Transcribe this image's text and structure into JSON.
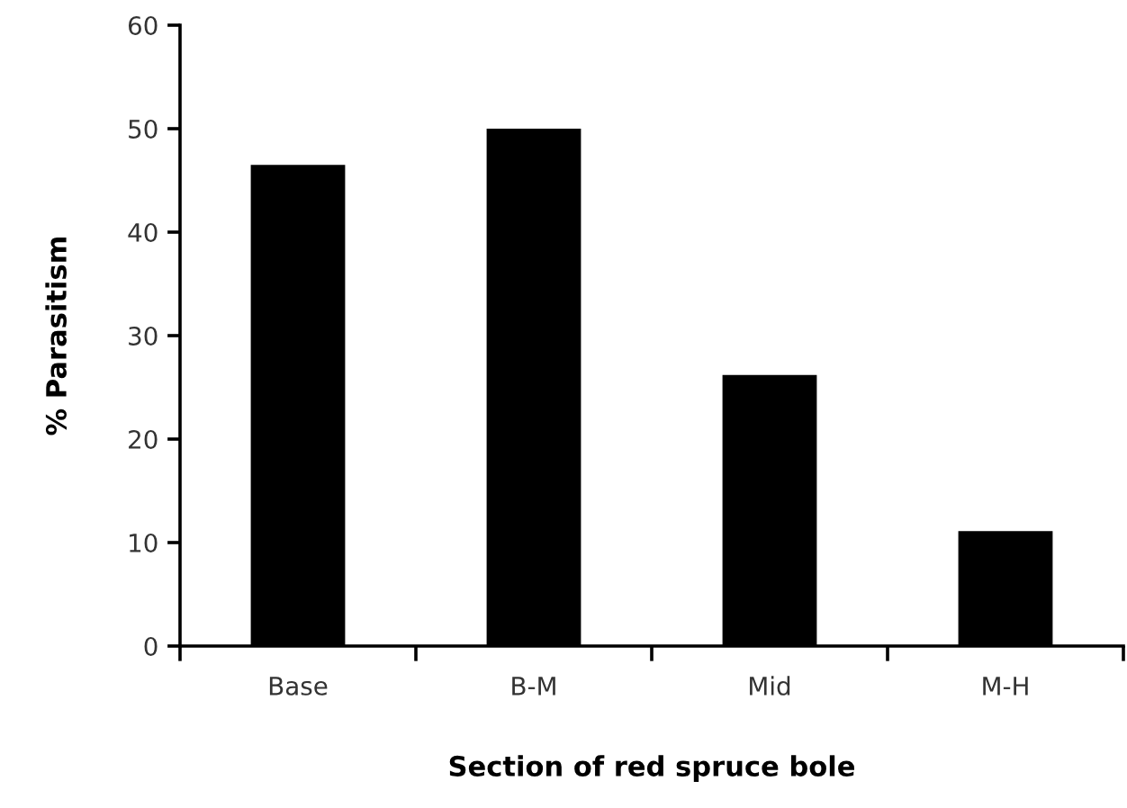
{
  "chart_data": {
    "type": "bar",
    "xlabel": "Section of red spruce bole",
    "ylabel": "% Parasitism",
    "categories": [
      "Base",
      "B-M",
      "Mid",
      "M-H"
    ],
    "values": [
      46.5,
      50,
      26.2,
      11.1
    ],
    "color": "#000000",
    "ylim": [
      0,
      60
    ],
    "yticks": [
      0,
      10,
      20,
      30,
      40,
      50,
      60
    ],
    "grid": false
  }
}
